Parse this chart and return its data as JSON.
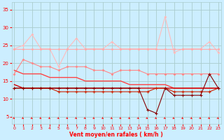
{
  "xlabel": "Vent moyen/en rafales ( km/h )",
  "x": [
    0,
    1,
    2,
    3,
    4,
    5,
    6,
    7,
    8,
    9,
    10,
    11,
    12,
    13,
    14,
    15,
    16,
    17,
    18,
    19,
    20,
    21,
    22,
    23
  ],
  "line_rafmax": [
    24,
    25,
    28,
    24,
    24,
    19,
    24,
    27,
    24,
    24,
    24,
    26,
    24,
    24,
    24,
    24,
    24,
    33,
    23,
    24,
    24,
    24,
    26,
    23
  ],
  "line_rafmoy": [
    24,
    24,
    24,
    24,
    24,
    24,
    24,
    24,
    24,
    24,
    24,
    24,
    24,
    24,
    24,
    24,
    24,
    24,
    24,
    24,
    24,
    24,
    24,
    24
  ],
  "line_ventmoy": [
    17,
    21,
    20,
    19,
    19,
    18,
    19,
    19,
    19,
    18,
    18,
    17,
    18,
    18,
    18,
    17,
    17,
    17,
    17,
    17,
    17,
    17,
    17,
    17
  ],
  "line_reg1": [
    18,
    17,
    17,
    17,
    16,
    16,
    16,
    16,
    15,
    15,
    15,
    15,
    15,
    14,
    14,
    14,
    14,
    14,
    13,
    13,
    13,
    13,
    13,
    13
  ],
  "line_reg2": [
    14,
    13,
    13,
    13,
    13,
    13,
    13,
    13,
    13,
    13,
    13,
    13,
    13,
    13,
    13,
    13,
    13,
    13,
    13,
    13,
    13,
    13,
    13,
    13
  ],
  "line_ventmin": [
    13,
    13,
    13,
    13,
    13,
    12,
    12,
    12,
    12,
    12,
    12,
    12,
    12,
    12,
    12,
    12,
    13,
    13,
    12,
    12,
    12,
    12,
    12,
    13
  ],
  "line_rafmin": [
    13,
    13,
    13,
    13,
    13,
    13,
    13,
    13,
    13,
    13,
    13,
    13,
    13,
    13,
    13,
    7,
    6,
    13,
    11,
    11,
    11,
    11,
    17,
    13
  ],
  "bg_color": "#cceeff",
  "grid_color": "#aacccc",
  "col_rafmax": "#ffbbbb",
  "col_rafmoy": "#ffaaaa",
  "col_ventmoy": "#ff8888",
  "col_reg1": "#ff4444",
  "col_reg2": "#cc0000",
  "col_ventmin": "#cc2200",
  "col_rafmin": "#880000",
  "tick_color": "#ff0000",
  "label_color": "#ff0000",
  "yticks": [
    5,
    10,
    15,
    20,
    25,
    30,
    35
  ],
  "ylim": [
    3,
    37
  ],
  "xlim": [
    -0.3,
    23.3
  ]
}
